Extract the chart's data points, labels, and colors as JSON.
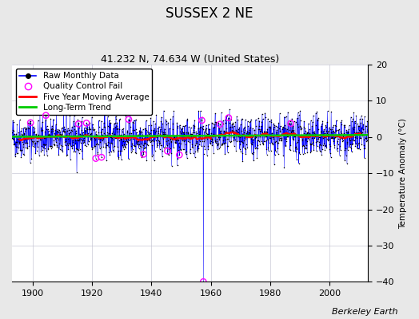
{
  "title": "SUSSEX 2 NE",
  "subtitle": "41.232 N, 74.634 W (United States)",
  "ylabel": "Temperature Anomaly (°C)",
  "credit": "Berkeley Earth",
  "xlim": [
    1893,
    2013
  ],
  "ylim": [
    -40,
    20
  ],
  "yticks": [
    -40,
    -30,
    -20,
    -10,
    0,
    10,
    20
  ],
  "xticks": [
    1900,
    1920,
    1940,
    1960,
    1980,
    2000
  ],
  "x_start": 1893,
  "x_end": 2012,
  "seed": 42,
  "bg_color": "#e8e8e8",
  "plot_bg_color": "#ffffff",
  "raw_line_color": "#0000ff",
  "raw_dot_color": "#000000",
  "qc_fail_color": "#ff00ff",
  "moving_avg_color": "#ff0000",
  "trend_color": "#00cc00",
  "spike_year": 1957.5,
  "spike_value": -40.0,
  "noise_std": 2.8,
  "long_term_trend_slope": 0.004,
  "qc_fail_years": [
    1899,
    1904,
    1915,
    1918,
    1921,
    1923,
    1932,
    1937,
    1945,
    1949,
    1957,
    1963,
    1966,
    1987
  ],
  "title_fontsize": 12,
  "subtitle_fontsize": 9,
  "tick_fontsize": 8,
  "legend_fontsize": 7.5,
  "ylabel_fontsize": 7.5,
  "credit_fontsize": 8
}
